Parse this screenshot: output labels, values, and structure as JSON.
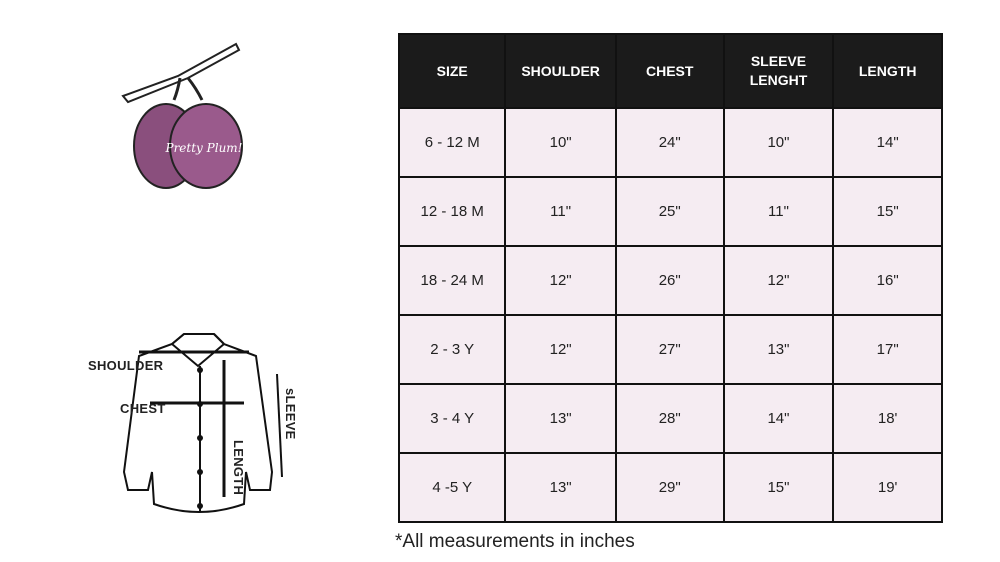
{
  "logo": {
    "text": "Pretty Plum!",
    "color": "#8a4f7d"
  },
  "diagram": {
    "labels": {
      "shoulder": "SHOULDER",
      "chest": "CHEST",
      "sleeve": "sLEEVE",
      "length": "LENGTH"
    }
  },
  "table": {
    "headers": [
      "SIZE",
      "SHOULDER",
      "CHEST",
      "SLEEVE LENGHT",
      "LENGTH"
    ],
    "rows": [
      [
        "6 - 12 M",
        "10\"",
        "24\"",
        "10\"",
        "14\""
      ],
      [
        "12 - 18 M",
        "11\"",
        "25\"",
        "11\"",
        "15\""
      ],
      [
        "18 - 24 M",
        "12\"",
        "26\"",
        "12\"",
        "16\""
      ],
      [
        "2 - 3 Y",
        "12\"",
        "27\"",
        "13\"",
        "17\""
      ],
      [
        "3 - 4 Y",
        "13\"",
        "28\"",
        "14\"",
        "18'"
      ],
      [
        "4 -5 Y",
        "13\"",
        "29\"",
        "15\"",
        "19'"
      ]
    ]
  },
  "note": "*All measurements in inches"
}
